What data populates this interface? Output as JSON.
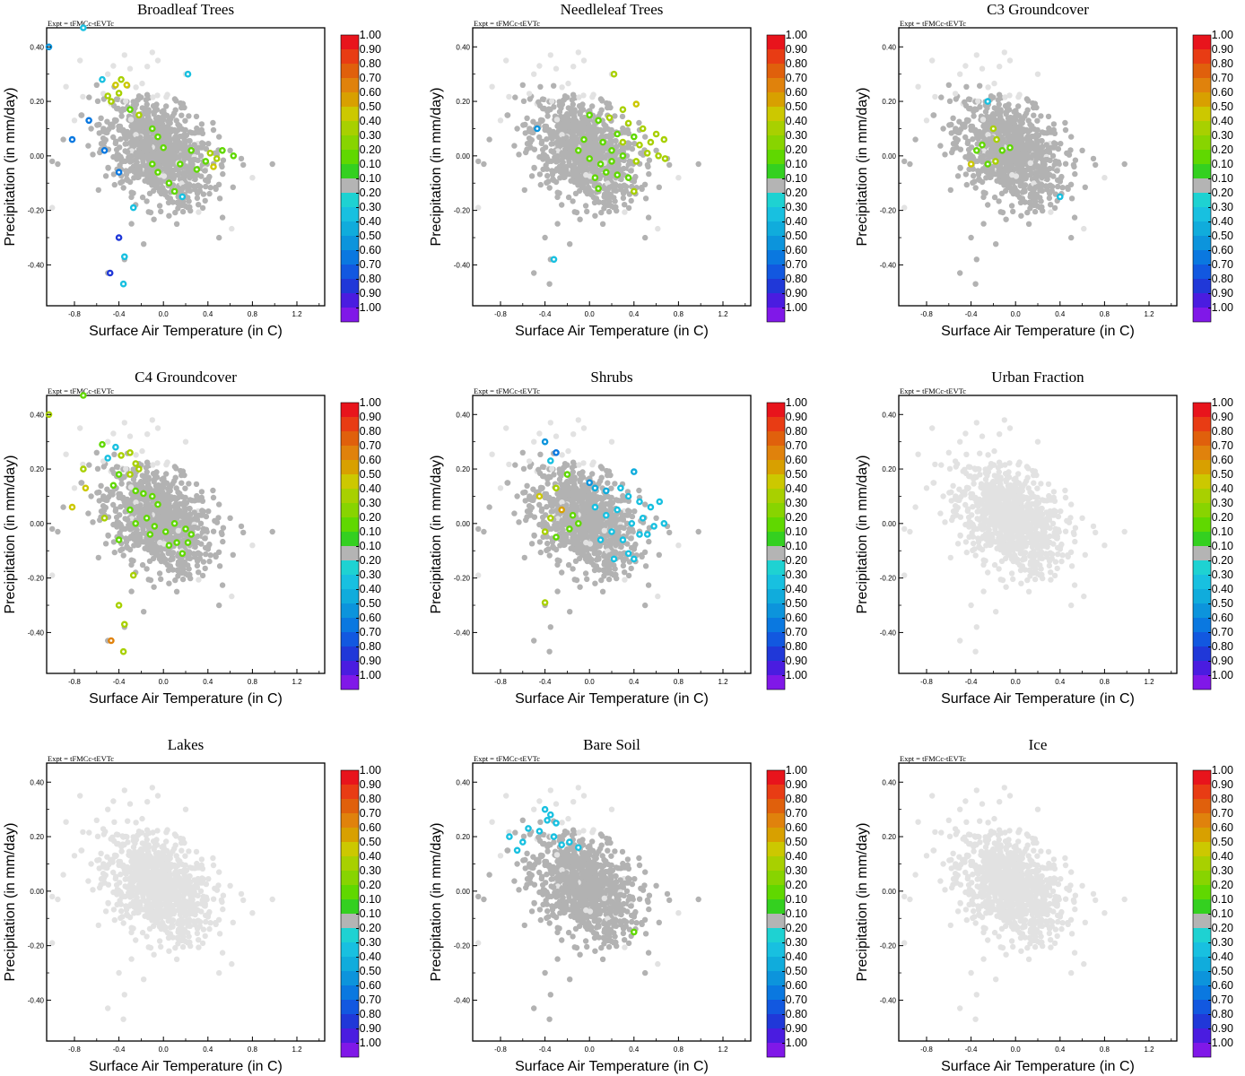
{
  "figure": {
    "experiment_label": "Expt = tFMCc-tEVTc",
    "xlabel": "Surface Air Temperature (in C)",
    "ylabel": "Precipitation (in mm/day)",
    "colorbar": {
      "labels": [
        "1.00",
        "0.90",
        "0.80",
        "0.70",
        "0.60",
        "0.50",
        "0.40",
        "0.30",
        "0.20",
        "0.10",
        "-0.10",
        "-0.20",
        "-0.30",
        "-0.40",
        "-0.50",
        "-0.60",
        "-0.70",
        "-0.80",
        "-0.90",
        "-1.00"
      ],
      "colors": [
        "#e8141c",
        "#e83c14",
        "#e0600c",
        "#e0820c",
        "#d8a000",
        "#ccc800",
        "#a8d000",
        "#88d400",
        "#60d800",
        "#34d020",
        "#b4b4b4",
        "#1ed2d2",
        "#18c0e0",
        "#10acdc",
        "#0c94dc",
        "#0a78e0",
        "#1258e0",
        "#2038d8",
        "#4a1ce0",
        "#8018e8"
      ]
    },
    "inactive_color": "#e2e2e2",
    "neutral_color": "#b2b2b2"
  },
  "chart_data": [
    {
      "type": "scatter",
      "title": "Broadleaf Trees",
      "xlim": [
        -1.05,
        1.45
      ],
      "ylim": [
        -0.55,
        0.47
      ],
      "xticks": [
        "-0.8",
        "-0.4",
        "0.0",
        "0.4",
        "0.8",
        "1.2"
      ],
      "yticks": [
        "-0.40",
        "-0.20",
        "0.00",
        "0.20",
        "0.40"
      ],
      "background": "both",
      "colored_points": [
        {
          "x": -1.03,
          "y": 0.4,
          "v": -0.45
        },
        {
          "x": -0.72,
          "y": 0.47,
          "v": -0.25
        },
        {
          "x": -0.82,
          "y": 0.06,
          "v": -0.55
        },
        {
          "x": -0.67,
          "y": 0.13,
          "v": -0.55
        },
        {
          "x": -0.53,
          "y": 0.02,
          "v": -0.55
        },
        {
          "x": -0.4,
          "y": -0.06,
          "v": -0.55
        },
        {
          "x": -0.4,
          "y": -0.3,
          "v": -0.75
        },
        {
          "x": -0.48,
          "y": -0.43,
          "v": -0.75
        },
        {
          "x": -0.35,
          "y": -0.37,
          "v": -0.25
        },
        {
          "x": -0.36,
          "y": -0.47,
          "v": -0.25
        },
        {
          "x": -0.27,
          "y": -0.19,
          "v": -0.25
        },
        {
          "x": 0.22,
          "y": 0.3,
          "v": -0.25
        },
        {
          "x": 0.17,
          "y": -0.15,
          "v": -0.25
        },
        {
          "x": -0.55,
          "y": 0.28,
          "v": -0.25
        },
        {
          "x": -0.5,
          "y": 0.22,
          "v": 0.35
        },
        {
          "x": -0.43,
          "y": 0.26,
          "v": 0.45
        },
        {
          "x": -0.38,
          "y": 0.28,
          "v": 0.35
        },
        {
          "x": -0.33,
          "y": 0.26,
          "v": 0.45
        },
        {
          "x": -0.47,
          "y": 0.2,
          "v": 0.35
        },
        {
          "x": -0.4,
          "y": 0.23,
          "v": 0.35
        },
        {
          "x": -0.3,
          "y": 0.17,
          "v": 0.15
        },
        {
          "x": -0.22,
          "y": 0.15,
          "v": 0.35
        },
        {
          "x": -0.1,
          "y": 0.1,
          "v": 0.15
        },
        {
          "x": -0.05,
          "y": 0.07,
          "v": 0.15
        },
        {
          "x": 0.0,
          "y": 0.03,
          "v": 0.15
        },
        {
          "x": -0.1,
          "y": -0.03,
          "v": 0.15
        },
        {
          "x": -0.05,
          "y": -0.06,
          "v": 0.15
        },
        {
          "x": 0.05,
          "y": -0.1,
          "v": 0.15
        },
        {
          "x": 0.1,
          "y": -0.13,
          "v": 0.15
        },
        {
          "x": 0.3,
          "y": -0.05,
          "v": 0.15
        },
        {
          "x": 0.38,
          "y": -0.02,
          "v": 0.15
        },
        {
          "x": 0.42,
          "y": 0.01,
          "v": 0.35
        },
        {
          "x": 0.48,
          "y": -0.01,
          "v": 0.35
        },
        {
          "x": 0.45,
          "y": -0.04,
          "v": 0.45
        },
        {
          "x": 0.53,
          "y": 0.02,
          "v": 0.15
        },
        {
          "x": 0.63,
          "y": 0.0,
          "v": 0.15
        },
        {
          "x": 0.15,
          "y": -0.03,
          "v": 0.15
        },
        {
          "x": 0.25,
          "y": 0.02,
          "v": 0.15
        }
      ]
    },
    {
      "type": "scatter",
      "title": "Needleleaf Trees",
      "xlim": [
        -1.05,
        1.45
      ],
      "ylim": [
        -0.55,
        0.47
      ],
      "xticks": [
        "-0.8",
        "-0.4",
        "0.0",
        "0.4",
        "0.8",
        "1.2"
      ],
      "yticks": [
        "-0.40",
        "-0.20",
        "0.00",
        "0.20",
        "0.40"
      ],
      "background": "both",
      "colored_points": [
        {
          "x": -0.47,
          "y": 0.1,
          "v": -0.45
        },
        {
          "x": -0.32,
          "y": -0.38,
          "v": -0.25
        },
        {
          "x": 0.22,
          "y": 0.3,
          "v": 0.35
        },
        {
          "x": 0.42,
          "y": 0.19,
          "v": 0.45
        },
        {
          "x": 0.3,
          "y": 0.17,
          "v": 0.35
        },
        {
          "x": 0.0,
          "y": 0.15,
          "v": 0.15
        },
        {
          "x": 0.08,
          "y": 0.13,
          "v": 0.15
        },
        {
          "x": 0.18,
          "y": 0.14,
          "v": 0.35
        },
        {
          "x": 0.35,
          "y": 0.12,
          "v": 0.35
        },
        {
          "x": 0.48,
          "y": 0.1,
          "v": 0.35
        },
        {
          "x": 0.6,
          "y": 0.08,
          "v": 0.35
        },
        {
          "x": 0.67,
          "y": 0.06,
          "v": 0.35
        },
        {
          "x": 0.55,
          "y": 0.05,
          "v": 0.35
        },
        {
          "x": 0.4,
          "y": 0.07,
          "v": 0.15
        },
        {
          "x": 0.25,
          "y": 0.08,
          "v": 0.15
        },
        {
          "x": 0.12,
          "y": 0.05,
          "v": 0.15
        },
        {
          "x": -0.05,
          "y": 0.06,
          "v": 0.15
        },
        {
          "x": -0.1,
          "y": 0.02,
          "v": 0.15
        },
        {
          "x": 0.0,
          "y": -0.01,
          "v": 0.15
        },
        {
          "x": 0.1,
          "y": -0.03,
          "v": 0.15
        },
        {
          "x": 0.2,
          "y": -0.02,
          "v": 0.15
        },
        {
          "x": 0.3,
          "y": 0.0,
          "v": 0.15
        },
        {
          "x": 0.42,
          "y": -0.02,
          "v": 0.35
        },
        {
          "x": 0.52,
          "y": 0.01,
          "v": 0.35
        },
        {
          "x": 0.62,
          "y": 0.0,
          "v": 0.35
        },
        {
          "x": 0.68,
          "y": -0.01,
          "v": 0.35
        },
        {
          "x": 0.35,
          "y": -0.08,
          "v": 0.15
        },
        {
          "x": 0.25,
          "y": -0.07,
          "v": 0.15
        },
        {
          "x": 0.15,
          "y": -0.06,
          "v": 0.15
        },
        {
          "x": 0.05,
          "y": -0.08,
          "v": 0.15
        },
        {
          "x": 0.08,
          "y": -0.12,
          "v": 0.15
        },
        {
          "x": 0.4,
          "y": -0.13,
          "v": 0.35
        },
        {
          "x": 0.45,
          "y": 0.04,
          "v": 0.35
        },
        {
          "x": 0.3,
          "y": 0.05,
          "v": 0.35
        },
        {
          "x": 0.2,
          "y": 0.02,
          "v": 0.15
        }
      ]
    },
    {
      "type": "scatter",
      "title": "C3 Groundcover",
      "xlim": [
        -1.05,
        1.45
      ],
      "ylim": [
        -0.55,
        0.47
      ],
      "xticks": [
        "-0.8",
        "-0.4",
        "0.0",
        "0.4",
        "0.8",
        "1.2"
      ],
      "yticks": [
        "-0.40",
        "-0.20",
        "0.00",
        "0.20",
        "0.40"
      ],
      "background": "both",
      "colored_points": [
        {
          "x": -0.4,
          "y": -0.03,
          "v": 0.45
        },
        {
          "x": -0.35,
          "y": 0.02,
          "v": 0.15
        },
        {
          "x": -0.3,
          "y": 0.04,
          "v": 0.15
        },
        {
          "x": -0.25,
          "y": -0.03,
          "v": 0.15
        },
        {
          "x": -0.18,
          "y": -0.02,
          "v": 0.35
        },
        {
          "x": -0.17,
          "y": 0.06,
          "v": 0.35
        },
        {
          "x": -0.12,
          "y": 0.02,
          "v": 0.15
        },
        {
          "x": -0.05,
          "y": 0.03,
          "v": 0.15
        },
        {
          "x": -0.2,
          "y": 0.1,
          "v": 0.35
        },
        {
          "x": -0.25,
          "y": 0.2,
          "v": -0.25
        },
        {
          "x": 0.4,
          "y": -0.15,
          "v": -0.25
        }
      ]
    },
    {
      "type": "scatter",
      "title": "C4 Groundcover",
      "xlim": [
        -1.05,
        1.45
      ],
      "ylim": [
        -0.55,
        0.47
      ],
      "xticks": [
        "-0.8",
        "-0.4",
        "0.0",
        "0.4",
        "0.8",
        "1.2"
      ],
      "yticks": [
        "-0.40",
        "-0.20",
        "0.00",
        "0.20",
        "0.40"
      ],
      "background": "both",
      "colored_points": [
        {
          "x": -1.03,
          "y": 0.4,
          "v": 0.35
        },
        {
          "x": -0.72,
          "y": 0.47,
          "v": 0.15
        },
        {
          "x": -0.82,
          "y": 0.06,
          "v": 0.45
        },
        {
          "x": -0.7,
          "y": 0.13,
          "v": 0.45
        },
        {
          "x": -0.72,
          "y": 0.2,
          "v": 0.35
        },
        {
          "x": -0.53,
          "y": 0.02,
          "v": 0.35
        },
        {
          "x": -0.4,
          "y": -0.06,
          "v": 0.15
        },
        {
          "x": -0.4,
          "y": -0.3,
          "v": 0.35
        },
        {
          "x": -0.47,
          "y": -0.43,
          "v": 0.65
        },
        {
          "x": -0.35,
          "y": -0.37,
          "v": 0.35
        },
        {
          "x": -0.36,
          "y": -0.47,
          "v": 0.35
        },
        {
          "x": -0.27,
          "y": -0.19,
          "v": 0.35
        },
        {
          "x": -0.55,
          "y": 0.29,
          "v": 0.15
        },
        {
          "x": -0.5,
          "y": 0.24,
          "v": -0.25
        },
        {
          "x": -0.43,
          "y": 0.28,
          "v": -0.25
        },
        {
          "x": -0.38,
          "y": 0.25,
          "v": 0.35
        },
        {
          "x": -0.3,
          "y": 0.26,
          "v": 0.35
        },
        {
          "x": -0.25,
          "y": 0.22,
          "v": 0.35
        },
        {
          "x": -0.3,
          "y": 0.18,
          "v": 0.35
        },
        {
          "x": -0.22,
          "y": 0.2,
          "v": 0.35
        },
        {
          "x": -0.4,
          "y": 0.18,
          "v": 0.15
        },
        {
          "x": -0.45,
          "y": 0.14,
          "v": 0.15
        },
        {
          "x": -0.25,
          "y": 0.12,
          "v": 0.15
        },
        {
          "x": -0.18,
          "y": 0.11,
          "v": 0.15
        },
        {
          "x": -0.1,
          "y": 0.1,
          "v": 0.15
        },
        {
          "x": -0.05,
          "y": 0.07,
          "v": 0.15
        },
        {
          "x": -0.3,
          "y": 0.05,
          "v": 0.15
        },
        {
          "x": -0.25,
          "y": 0.0,
          "v": 0.15
        },
        {
          "x": -0.15,
          "y": 0.02,
          "v": 0.15
        },
        {
          "x": -0.08,
          "y": -0.01,
          "v": 0.15
        },
        {
          "x": 0.02,
          "y": -0.03,
          "v": 0.15
        },
        {
          "x": -0.12,
          "y": -0.04,
          "v": 0.15
        },
        {
          "x": 0.1,
          "y": 0.0,
          "v": 0.15
        },
        {
          "x": 0.2,
          "y": -0.02,
          "v": 0.15
        },
        {
          "x": 0.05,
          "y": -0.08,
          "v": 0.15
        },
        {
          "x": 0.12,
          "y": -0.07,
          "v": 0.15
        },
        {
          "x": 0.17,
          "y": -0.11,
          "v": 0.15
        },
        {
          "x": 0.22,
          "y": -0.07,
          "v": 0.15
        },
        {
          "x": 0.25,
          "y": -0.04,
          "v": 0.15
        }
      ]
    },
    {
      "type": "scatter",
      "title": "Shrubs",
      "xlim": [
        -1.05,
        1.45
      ],
      "ylim": [
        -0.55,
        0.47
      ],
      "xticks": [
        "-0.8",
        "-0.4",
        "0.0",
        "0.4",
        "0.8",
        "1.2"
      ],
      "yticks": [
        "-0.40",
        "-0.20",
        "0.00",
        "0.20",
        "0.40"
      ],
      "background": "both",
      "colored_points": [
        {
          "x": -0.4,
          "y": 0.3,
          "v": -0.45
        },
        {
          "x": -0.3,
          "y": 0.26,
          "v": -0.55
        },
        {
          "x": -0.35,
          "y": 0.23,
          "v": -0.25
        },
        {
          "x": -0.45,
          "y": 0.1,
          "v": 0.45
        },
        {
          "x": -0.3,
          "y": 0.13,
          "v": 0.35
        },
        {
          "x": -0.2,
          "y": 0.18,
          "v": 0.15
        },
        {
          "x": -0.25,
          "y": 0.05,
          "v": 0.55
        },
        {
          "x": -0.35,
          "y": 0.02,
          "v": 0.35
        },
        {
          "x": -0.4,
          "y": -0.03,
          "v": 0.35
        },
        {
          "x": -0.3,
          "y": -0.05,
          "v": 0.15
        },
        {
          "x": -0.15,
          "y": 0.03,
          "v": 0.15
        },
        {
          "x": -0.18,
          "y": -0.02,
          "v": 0.15
        },
        {
          "x": -0.1,
          "y": 0.0,
          "v": 0.15
        },
        {
          "x": -0.4,
          "y": -0.29,
          "v": 0.35
        },
        {
          "x": 0.0,
          "y": 0.15,
          "v": -0.45
        },
        {
          "x": 0.05,
          "y": 0.13,
          "v": -0.35
        },
        {
          "x": 0.15,
          "y": 0.12,
          "v": -0.35
        },
        {
          "x": 0.28,
          "y": 0.13,
          "v": -0.25
        },
        {
          "x": 0.4,
          "y": 0.19,
          "v": -0.35
        },
        {
          "x": 0.35,
          "y": 0.1,
          "v": -0.25
        },
        {
          "x": 0.45,
          "y": 0.08,
          "v": -0.25
        },
        {
          "x": 0.55,
          "y": 0.06,
          "v": -0.25
        },
        {
          "x": 0.63,
          "y": 0.08,
          "v": -0.25
        },
        {
          "x": 0.67,
          "y": 0.0,
          "v": -0.25
        },
        {
          "x": 0.58,
          "y": -0.01,
          "v": -0.25
        },
        {
          "x": 0.48,
          "y": 0.02,
          "v": -0.25
        },
        {
          "x": 0.38,
          "y": 0.0,
          "v": -0.25
        },
        {
          "x": 0.45,
          "y": -0.04,
          "v": -0.25
        },
        {
          "x": 0.52,
          "y": -0.04,
          "v": -0.25
        },
        {
          "x": 0.3,
          "y": -0.06,
          "v": -0.25
        },
        {
          "x": 0.2,
          "y": -0.03,
          "v": -0.25
        },
        {
          "x": 0.25,
          "y": 0.05,
          "v": -0.25
        },
        {
          "x": 0.15,
          "y": 0.03,
          "v": -0.25
        },
        {
          "x": 0.1,
          "y": -0.06,
          "v": -0.25
        },
        {
          "x": 0.35,
          "y": -0.11,
          "v": -0.25
        },
        {
          "x": 0.4,
          "y": -0.13,
          "v": -0.25
        },
        {
          "x": 0.22,
          "y": -0.13,
          "v": -0.25
        },
        {
          "x": 0.05,
          "y": 0.06,
          "v": -0.25
        }
      ]
    },
    {
      "type": "scatter",
      "title": "Urban Fraction",
      "xlim": [
        -1.05,
        1.45
      ],
      "ylim": [
        -0.55,
        0.47
      ],
      "xticks": [
        "-0.8",
        "-0.4",
        "0.0",
        "0.4",
        "0.8",
        "1.2"
      ],
      "yticks": [
        "-0.40",
        "-0.20",
        "0.00",
        "0.20",
        "0.40"
      ],
      "background": "light",
      "colored_points": []
    },
    {
      "type": "scatter",
      "title": "Lakes",
      "xlim": [
        -1.05,
        1.45
      ],
      "ylim": [
        -0.55,
        0.47
      ],
      "xticks": [
        "-0.8",
        "-0.4",
        "0.0",
        "0.4",
        "0.8",
        "1.2"
      ],
      "yticks": [
        "-0.40",
        "-0.20",
        "0.00",
        "0.20",
        "0.40"
      ],
      "background": "light",
      "colored_points": []
    },
    {
      "type": "scatter",
      "title": "Bare Soil",
      "xlim": [
        -1.05,
        1.45
      ],
      "ylim": [
        -0.55,
        0.47
      ],
      "xticks": [
        "-0.8",
        "-0.4",
        "0.0",
        "0.4",
        "0.8",
        "1.2"
      ],
      "yticks": [
        "-0.40",
        "-0.20",
        "0.00",
        "0.20",
        "0.40"
      ],
      "background": "both",
      "colored_points": [
        {
          "x": -0.72,
          "y": 0.2,
          "v": -0.25
        },
        {
          "x": -0.65,
          "y": 0.15,
          "v": -0.25
        },
        {
          "x": -0.6,
          "y": 0.18,
          "v": -0.25
        },
        {
          "x": -0.55,
          "y": 0.23,
          "v": -0.25
        },
        {
          "x": -0.45,
          "y": 0.22,
          "v": -0.25
        },
        {
          "x": -0.38,
          "y": 0.26,
          "v": -0.25
        },
        {
          "x": -0.3,
          "y": 0.25,
          "v": -0.25
        },
        {
          "x": -0.32,
          "y": 0.2,
          "v": -0.25
        },
        {
          "x": -0.25,
          "y": 0.17,
          "v": -0.25
        },
        {
          "x": -0.18,
          "y": 0.18,
          "v": -0.25
        },
        {
          "x": -0.1,
          "y": 0.16,
          "v": -0.25
        },
        {
          "x": -0.35,
          "y": 0.28,
          "v": -0.25
        },
        {
          "x": -0.4,
          "y": 0.3,
          "v": -0.25
        },
        {
          "x": 0.4,
          "y": -0.15,
          "v": 0.15
        }
      ]
    },
    {
      "type": "scatter",
      "title": "Ice",
      "xlim": [
        -1.05,
        1.45
      ],
      "ylim": [
        -0.55,
        0.47
      ],
      "xticks": [
        "-0.8",
        "-0.4",
        "0.0",
        "0.4",
        "0.8",
        "1.2"
      ],
      "yticks": [
        "-0.40",
        "-0.20",
        "0.00",
        "0.20",
        "0.40"
      ],
      "background": "light",
      "colored_points": []
    }
  ]
}
